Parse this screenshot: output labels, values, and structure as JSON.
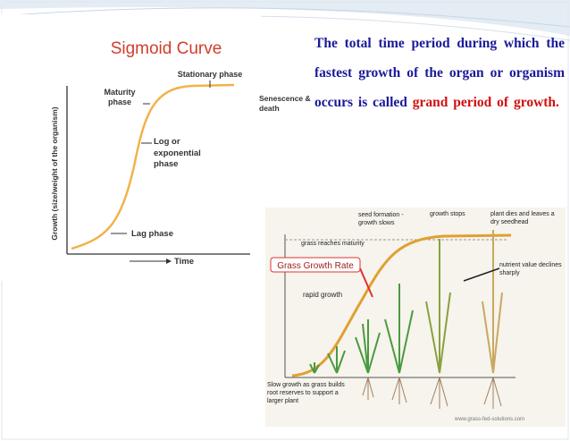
{
  "left_figure": {
    "title": "Sigmoid Curve",
    "y_axis_label": "Growth (size/weight of the organism)",
    "x_axis_label": "Time",
    "labels": {
      "stationary": "Stationary phase",
      "maturity": "Maturity phase",
      "senescence": "Senescence & death",
      "log": "Log or exponential phase",
      "lag": "Lag phase"
    }
  },
  "paragraph": {
    "text": "The total time period during which the fastest growth of the organ or organism occurs is called",
    "highlight": "grand period of growth."
  },
  "right_figure": {
    "labels": {
      "seed": "seed formation - growth slows",
      "stops": "growth stops",
      "dies": "plant dies and leaves a dry seedhead",
      "maturity": "grass reaches maturity",
      "rate": "Grass Growth Rate",
      "rapid": "rapid growth",
      "nutrient": "nutrient value declines sharply",
      "slow": "Slow growth as grass builds root reserves to support a larger plant",
      "source": "www.grass-fed-solutions.com"
    }
  }
}
